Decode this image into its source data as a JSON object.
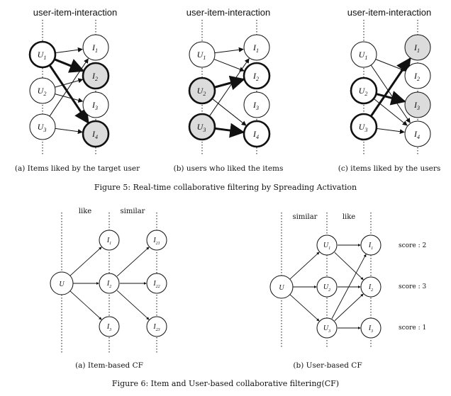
{
  "figure5": {
    "panels": [
      {
        "header": "user-item-interaction",
        "caption": "(a) Items liked by the target user",
        "users": [
          {
            "label": "U",
            "sub": "1",
            "state": "bold"
          },
          {
            "label": "U",
            "sub": "2",
            "state": "normal"
          },
          {
            "label": "U",
            "sub": "3",
            "state": "normal"
          }
        ],
        "items": [
          {
            "label": "I",
            "sub": "1",
            "state": "normal"
          },
          {
            "label": "I",
            "sub": "2",
            "state": "boldfill"
          },
          {
            "label": "I",
            "sub": "3",
            "state": "normal"
          },
          {
            "label": "I",
            "sub": "4",
            "state": "boldfill"
          }
        ]
      },
      {
        "header": "user-item-interaction",
        "caption": "(b) users who liked the items",
        "users": [
          {
            "label": "U",
            "sub": "1",
            "state": "normal"
          },
          {
            "label": "U",
            "sub": "2",
            "state": "boldfill"
          },
          {
            "label": "U",
            "sub": "3",
            "state": "boldfill"
          }
        ],
        "items": [
          {
            "label": "I",
            "sub": "1",
            "state": "normal"
          },
          {
            "label": "I",
            "sub": "2",
            "state": "bold"
          },
          {
            "label": "I",
            "sub": "3",
            "state": "normal"
          },
          {
            "label": "I",
            "sub": "4",
            "state": "bold"
          }
        ]
      },
      {
        "header": "user-item-interaction",
        "caption": "(c) items liked by the users",
        "users": [
          {
            "label": "U",
            "sub": "1",
            "state": "normal"
          },
          {
            "label": "U",
            "sub": "2",
            "state": "bold"
          },
          {
            "label": "U",
            "sub": "3",
            "state": "bold"
          }
        ],
        "items": [
          {
            "label": "I",
            "sub": "1",
            "state": "fill"
          },
          {
            "label": "I",
            "sub": "2",
            "state": "normal"
          },
          {
            "label": "I",
            "sub": "3",
            "state": "fill"
          },
          {
            "label": "I",
            "sub": "4",
            "state": "normal"
          }
        ]
      }
    ],
    "caption": "Figure 5: Real-time collaborative filtering by Spreading Activation"
  },
  "figure6": {
    "item_based": {
      "labels": [
        "like",
        "similar"
      ],
      "center": {
        "label": "U"
      },
      "mid": [
        {
          "label": "I",
          "sub": "1"
        },
        {
          "label": "I",
          "sub": "2"
        },
        {
          "label": "I",
          "sub": "3"
        }
      ],
      "right": [
        {
          "label": "I",
          "sub": "21"
        },
        {
          "label": "I",
          "sub": "22"
        },
        {
          "label": "I",
          "sub": "23"
        }
      ],
      "caption": "(a) Item-based CF"
    },
    "user_based": {
      "labels": [
        "similar",
        "like"
      ],
      "center": {
        "label": "U"
      },
      "mid": [
        {
          "label": "U",
          "sub": "1"
        },
        {
          "label": "U",
          "sub": "2"
        },
        {
          "label": "U",
          "sub": "3"
        }
      ],
      "right": [
        {
          "label": "I",
          "sub": "1"
        },
        {
          "label": "I",
          "sub": "2"
        },
        {
          "label": "I",
          "sub": "3"
        }
      ],
      "scores": [
        "score : 2",
        "score : 3",
        "score : 1"
      ],
      "caption": "(b) User-based CF"
    },
    "caption": "Figure 6: Item and User-based collaborative filtering(CF)"
  }
}
